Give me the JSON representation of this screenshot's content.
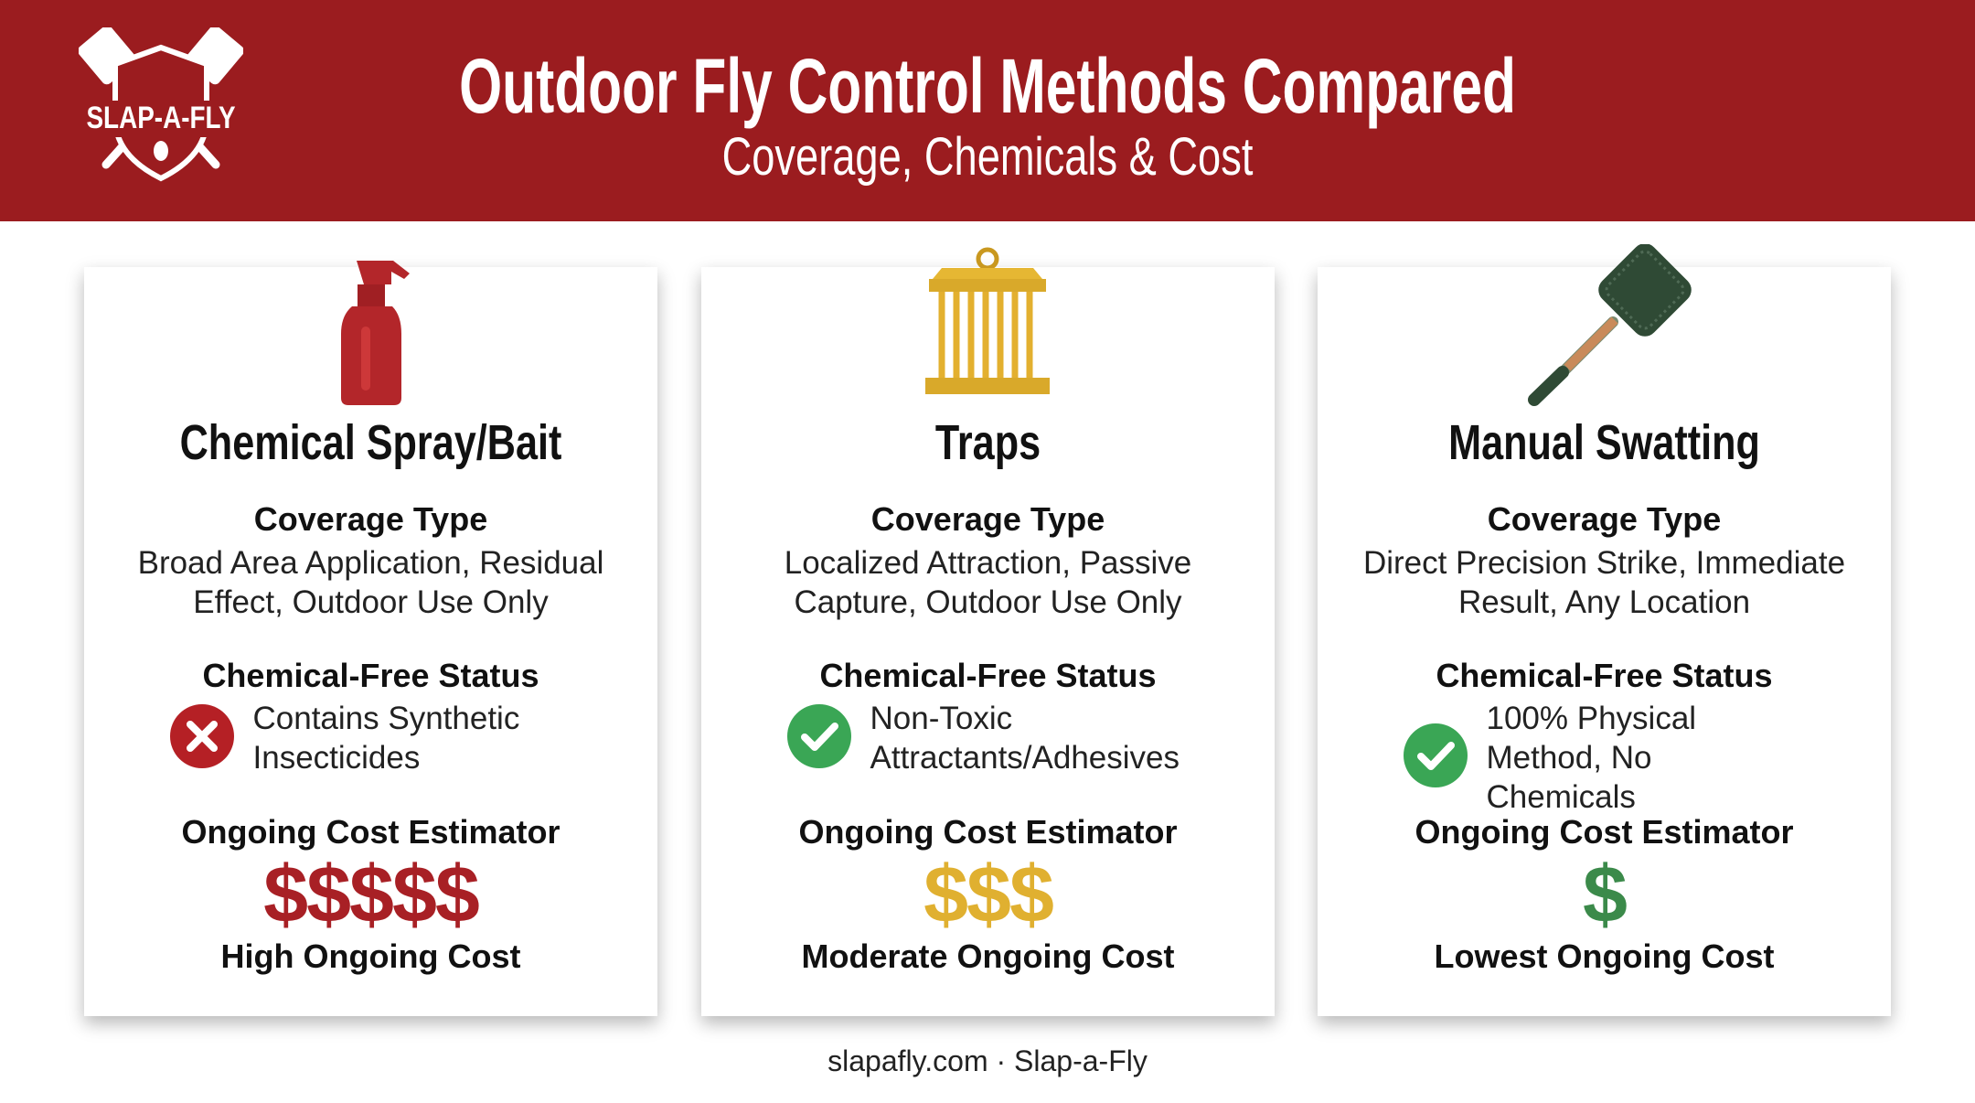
{
  "header": {
    "logo": "SLAP-A-FLY",
    "title": "Outdoor Fly Control Methods Compared",
    "subtitle": "Coverage, Chemicals & Cost"
  },
  "cards": [
    {
      "title": "Chemical Spray/Bait",
      "coverage_label": "Coverage Type",
      "coverage_text": "Broad Area Application, Residual Effect, Outdoor Use Only",
      "status_label": "Chemical-Free Status",
      "status_text": "Contains Synthetic Insecticides",
      "cost_label": "Ongoing Cost Estimator",
      "cost_symbols": "$$$$$",
      "cost_text": "High Ongoing Cost"
    },
    {
      "title": "Traps",
      "coverage_label": "Coverage Type",
      "coverage_text": "Localized Attraction, Passive Capture, Outdoor Use Only",
      "status_label": "Chemical-Free Status",
      "status_text": "Non-Toxic Attractants/Adhesives",
      "cost_label": "Ongoing Cost Estimator",
      "cost_symbols": "$$$",
      "cost_text": "Moderate Ongoing Cost"
    },
    {
      "title": "Manual Swatting",
      "coverage_label": "Coverage Type",
      "coverage_text": "Direct Precision Strike, Immediate Result, Any Location",
      "status_label": "Chemical-Free Status",
      "status_text": "100% Physical Method, No Chemicals",
      "cost_label": "Ongoing Cost Estimator",
      "cost_symbols": "$",
      "cost_text": "Lowest Ongoing Cost"
    }
  ],
  "footer": "slapafly.com · Slap-a-Fly"
}
